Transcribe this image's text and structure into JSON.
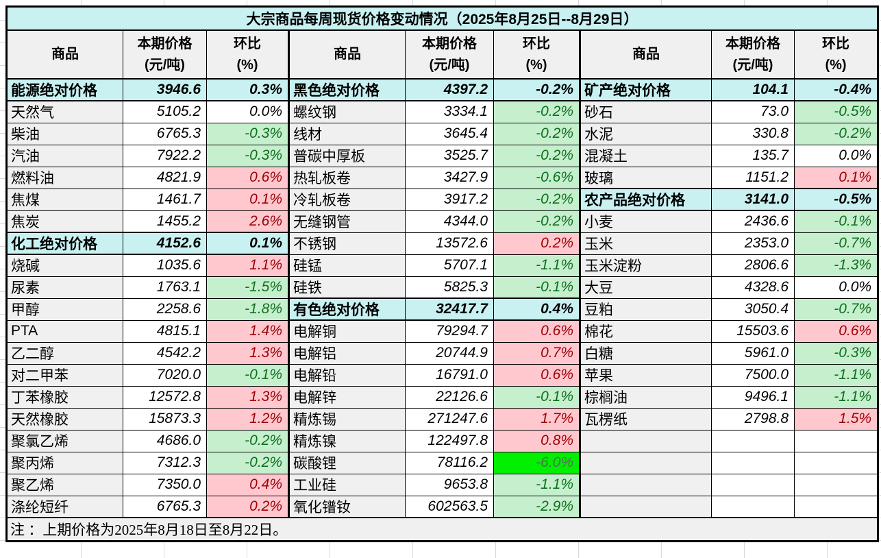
{
  "table": {
    "title": "大宗商品每周现货价格变动情况（2025年8月25日--8月29日）",
    "note": "注 ：上期价格为2025年8月18日至8月22日。",
    "headers": {
      "commodity": "商品",
      "price_l1": "本期价格",
      "price_l2": "(元/吨)",
      "pct_l1": "环比",
      "pct_l2": "(%)"
    },
    "colors": {
      "title_bg": "#c9f1f2",
      "section_bg": "#c9f1f2",
      "header_bg": "#f0f0f0",
      "commodity_bg": "#f0f0f0",
      "increase_bg": "#ffc7ce",
      "increase_text": "#9c0006",
      "decrease_bg": "#c6efce",
      "decrease_text": "#0e6f1e",
      "big_decrease_bg": "#00f000",
      "big_decrease_text": "#4f7252",
      "border": "#000000"
    },
    "groups": [
      [
        {
          "name": "能源绝对价格",
          "price": "3946.6",
          "pct": "0.3%",
          "kind": "section"
        },
        {
          "name": "天然气",
          "price": "5105.2",
          "pct": "0.0%",
          "kind": "flat"
        },
        {
          "name": "柴油",
          "price": "6765.3",
          "pct": "-0.3%",
          "kind": "down"
        },
        {
          "name": "汽油",
          "price": "7922.2",
          "pct": "-0.3%",
          "kind": "down"
        },
        {
          "name": "燃料油",
          "price": "4821.9",
          "pct": "0.6%",
          "kind": "up"
        },
        {
          "name": "焦煤",
          "price": "1461.7",
          "pct": "0.1%",
          "kind": "up"
        },
        {
          "name": "焦炭",
          "price": "1455.2",
          "pct": "2.6%",
          "kind": "up"
        },
        {
          "name": "化工绝对价格",
          "price": "4152.6",
          "pct": "0.1%",
          "kind": "section"
        },
        {
          "name": "烧碱",
          "price": "1035.6",
          "pct": "1.1%",
          "kind": "up"
        },
        {
          "name": "尿素",
          "price": "1763.1",
          "pct": "-1.5%",
          "kind": "down"
        },
        {
          "name": "甲醇",
          "price": "2258.6",
          "pct": "-1.8%",
          "kind": "down"
        },
        {
          "name": "PTA",
          "price": "4815.1",
          "pct": "1.4%",
          "kind": "up"
        },
        {
          "name": "乙二醇",
          "price": "4542.2",
          "pct": "1.3%",
          "kind": "up"
        },
        {
          "name": "对二甲苯",
          "price": "7020.0",
          "pct": "-0.1%",
          "kind": "down"
        },
        {
          "name": "丁苯橡胶",
          "price": "12572.8",
          "pct": "1.3%",
          "kind": "up"
        },
        {
          "name": "天然橡胶",
          "price": "15873.3",
          "pct": "1.2%",
          "kind": "up"
        },
        {
          "name": "聚氯乙烯",
          "price": "4686.0",
          "pct": "-0.2%",
          "kind": "down"
        },
        {
          "name": "聚丙烯",
          "price": "7312.3",
          "pct": "-0.2%",
          "kind": "down"
        },
        {
          "name": "聚乙烯",
          "price": "7350.0",
          "pct": "0.4%",
          "kind": "up"
        },
        {
          "name": "涤纶短纤",
          "price": "6765.3",
          "pct": "0.2%",
          "kind": "up"
        }
      ],
      [
        {
          "name": "黑色绝对价格",
          "price": "4397.2",
          "pct": "-0.2%",
          "kind": "section"
        },
        {
          "name": "螺纹钢",
          "price": "3334.1",
          "pct": "-0.2%",
          "kind": "down"
        },
        {
          "name": "线材",
          "price": "3645.4",
          "pct": "-0.2%",
          "kind": "down"
        },
        {
          "name": "普碳中厚板",
          "price": "3525.7",
          "pct": "-0.2%",
          "kind": "down"
        },
        {
          "name": "热轧板卷",
          "price": "3427.9",
          "pct": "-0.6%",
          "kind": "down"
        },
        {
          "name": "冷轧板卷",
          "price": "3917.2",
          "pct": "-0.2%",
          "kind": "down"
        },
        {
          "name": "无缝钢管",
          "price": "4344.0",
          "pct": "-0.2%",
          "kind": "down"
        },
        {
          "name": "不锈钢",
          "price": "13572.6",
          "pct": "0.2%",
          "kind": "up"
        },
        {
          "name": "硅锰",
          "price": "5707.1",
          "pct": "-1.1%",
          "kind": "down"
        },
        {
          "name": "硅铁",
          "price": "5825.3",
          "pct": "-0.1%",
          "kind": "down"
        },
        {
          "name": "有色绝对价格",
          "price": "32417.7",
          "pct": "0.4%",
          "kind": "section"
        },
        {
          "name": "电解铜",
          "price": "79294.7",
          "pct": "0.6%",
          "kind": "up"
        },
        {
          "name": "电解铝",
          "price": "20744.9",
          "pct": "0.7%",
          "kind": "up"
        },
        {
          "name": "电解铅",
          "price": "16791.0",
          "pct": "0.6%",
          "kind": "up"
        },
        {
          "name": "电解锌",
          "price": "22126.6",
          "pct": "-0.1%",
          "kind": "down"
        },
        {
          "name": "精炼锡",
          "price": "271247.6",
          "pct": "1.7%",
          "kind": "up"
        },
        {
          "name": "精炼镍",
          "price": "122497.8",
          "pct": "0.8%",
          "kind": "up"
        },
        {
          "name": "碳酸锂",
          "price": "78116.2",
          "pct": "-6.0%",
          "kind": "big_down"
        },
        {
          "name": "工业硅",
          "price": "9653.8",
          "pct": "-1.1%",
          "kind": "down"
        },
        {
          "name": "氧化镨钕",
          "price": "602563.5",
          "pct": "-2.9%",
          "kind": "down"
        }
      ],
      [
        {
          "name": "矿产绝对价格",
          "price": "104.1",
          "pct": "-0.4%",
          "kind": "section"
        },
        {
          "name": "砂石",
          "price": "73.0",
          "pct": "-0.5%",
          "kind": "down"
        },
        {
          "name": "水泥",
          "price": "330.8",
          "pct": "-0.2%",
          "kind": "down"
        },
        {
          "name": "混凝土",
          "price": "135.7",
          "pct": "0.0%",
          "kind": "flat"
        },
        {
          "name": "玻璃",
          "price": "1151.2",
          "pct": "0.1%",
          "kind": "up"
        },
        {
          "name": "农产品绝对价格",
          "price": "3141.0",
          "pct": "-0.5%",
          "kind": "section"
        },
        {
          "name": "小麦",
          "price": "2436.6",
          "pct": "-0.1%",
          "kind": "down"
        },
        {
          "name": "玉米",
          "price": "2353.0",
          "pct": "-0.7%",
          "kind": "down"
        },
        {
          "name": "玉米淀粉",
          "price": "2806.6",
          "pct": "-1.3%",
          "kind": "down"
        },
        {
          "name": "大豆",
          "price": "4328.6",
          "pct": "0.0%",
          "kind": "flat"
        },
        {
          "name": "豆粕",
          "price": "3050.4",
          "pct": "-0.7%",
          "kind": "down"
        },
        {
          "name": "棉花",
          "price": "15503.6",
          "pct": "0.6%",
          "kind": "up"
        },
        {
          "name": "白糖",
          "price": "5961.0",
          "pct": "-0.3%",
          "kind": "down"
        },
        {
          "name": "苹果",
          "price": "7500.0",
          "pct": "-1.1%",
          "kind": "down"
        },
        {
          "name": "棕榈油",
          "price": "9496.1",
          "pct": "-1.1%",
          "kind": "down"
        },
        {
          "name": "瓦楞纸",
          "price": "2798.8",
          "pct": "1.5%",
          "kind": "up"
        },
        {
          "name": "",
          "price": "",
          "pct": "",
          "kind": "empty"
        },
        {
          "name": "",
          "price": "",
          "pct": "",
          "kind": "empty"
        },
        {
          "name": "",
          "price": "",
          "pct": "",
          "kind": "empty"
        },
        {
          "name": "",
          "price": "",
          "pct": "",
          "kind": "empty"
        }
      ]
    ]
  }
}
